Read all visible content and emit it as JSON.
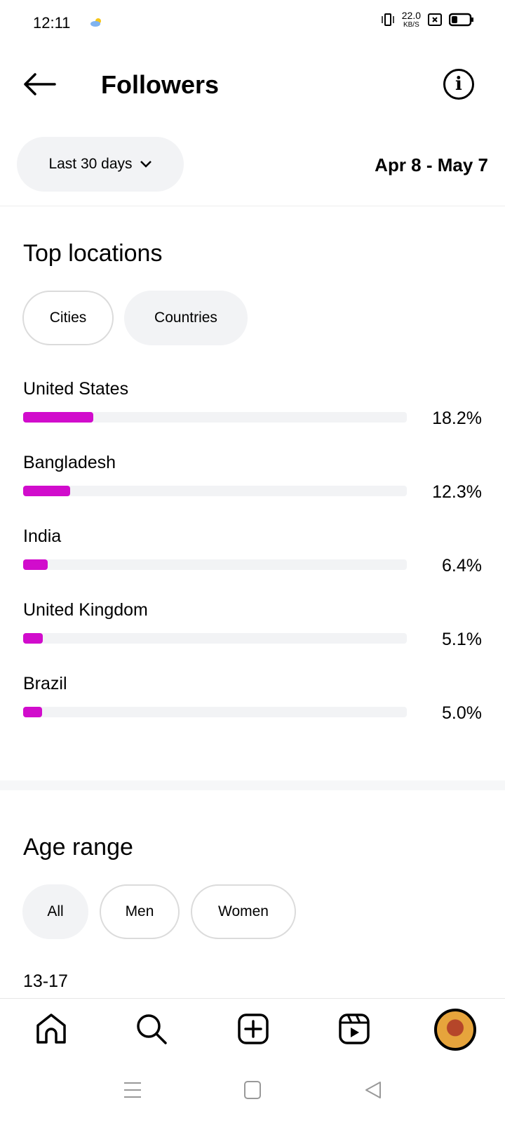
{
  "status": {
    "time": "12:11",
    "net_speed": "22.0",
    "net_unit": "KB/S"
  },
  "header": {
    "title": "Followers"
  },
  "filter": {
    "range_label": "Last 30 days",
    "dates": "Apr 8 - May 7"
  },
  "top_locations": {
    "title": "Top locations",
    "tabs": [
      {
        "label": "Cities",
        "selected": false
      },
      {
        "label": "Countries",
        "selected": true
      }
    ],
    "bar_color": "#d10ccc",
    "items": [
      {
        "name": "United States",
        "percent": 18.2,
        "label": "18.2%"
      },
      {
        "name": "Bangladesh",
        "percent": 12.3,
        "label": "12.3%"
      },
      {
        "name": "India",
        "percent": 6.4,
        "label": "6.4%"
      },
      {
        "name": "United Kingdom",
        "percent": 5.1,
        "label": "5.1%"
      },
      {
        "name": "Brazil",
        "percent": 5.0,
        "label": "5.0%"
      }
    ]
  },
  "age_range": {
    "title": "Age range",
    "tabs": [
      {
        "label": "All",
        "selected": true
      },
      {
        "label": "Men",
        "selected": false
      },
      {
        "label": "Women",
        "selected": false
      }
    ],
    "first_row": "13-17"
  },
  "nav": {
    "items": [
      "home-icon",
      "search-icon",
      "create-icon",
      "reels-icon",
      "profile-avatar"
    ]
  }
}
